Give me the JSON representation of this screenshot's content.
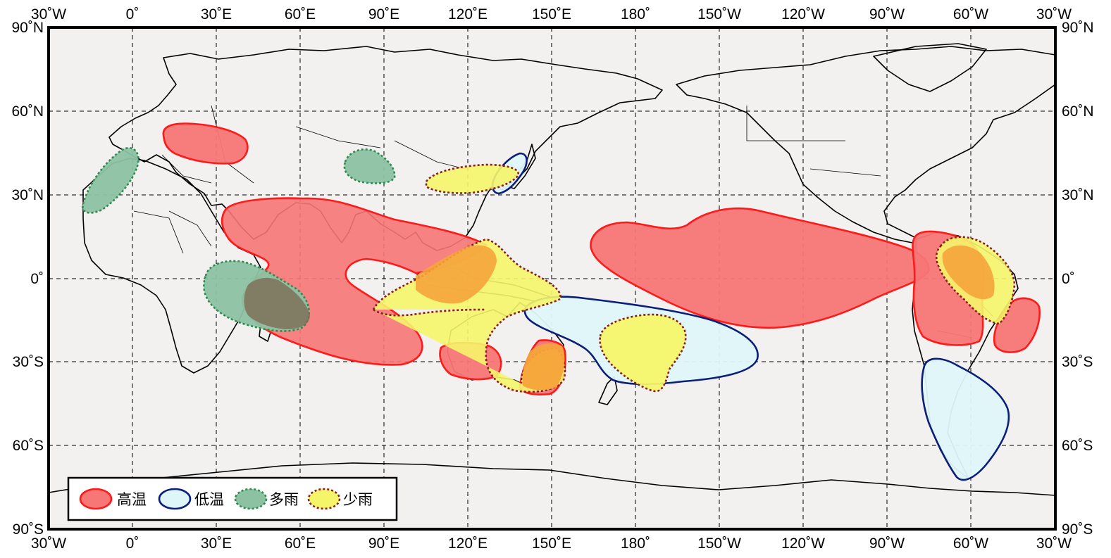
{
  "map": {
    "lon_labels": [
      "30˚W",
      "0˚",
      "30˚E",
      "60˚E",
      "90˚E",
      "120˚E",
      "150˚E",
      "180˚",
      "150˚W",
      "120˚W",
      "90˚W",
      "60˚W",
      "30˚W"
    ],
    "lat_labels": [
      "90˚N",
      "60˚N",
      "30˚N",
      "0˚",
      "30˚S",
      "60˚S",
      "90˚S"
    ],
    "colors": {
      "high_temp_fill": "#f77676",
      "high_temp_stroke": "#ff1a1a",
      "low_temp_fill": "#dff6f8",
      "low_temp_stroke": "#0a1f7a",
      "wet_fill": "#8cc2a2",
      "wet_stroke": "#2f8a4e",
      "dry_fill": "#f5f56a",
      "dry_stroke": "#8a1d1d",
      "ocean": "#f2f1f0"
    },
    "regions": [
      {
        "category": "high_temp",
        "area": "Europe"
      },
      {
        "category": "high_temp",
        "area": "Indian Ocean to Western Pacific"
      },
      {
        "category": "high_temp",
        "area": "Western Australia"
      },
      {
        "category": "high_temp",
        "area": "Eastern Australia"
      },
      {
        "category": "high_temp",
        "area": "Central to Eastern Pacific"
      },
      {
        "category": "high_temp",
        "area": "Northern South America"
      },
      {
        "category": "high_temp",
        "area": "Eastern Brazil coast"
      },
      {
        "category": "low_temp",
        "area": "Japan"
      },
      {
        "category": "low_temp",
        "area": "Southwest Pacific"
      },
      {
        "category": "low_temp",
        "area": "Southern South America"
      },
      {
        "category": "wet",
        "area": "Northwest Africa"
      },
      {
        "category": "wet",
        "area": "Central Asia"
      },
      {
        "category": "wet",
        "area": "East Africa"
      },
      {
        "category": "dry",
        "area": "East Asia"
      },
      {
        "category": "dry",
        "area": "Maritime Continent to Australia"
      },
      {
        "category": "dry",
        "area": "Southwest Pacific"
      },
      {
        "category": "dry",
        "area": "Northern South America"
      }
    ]
  },
  "legend": {
    "items": [
      {
        "key": "high_temp",
        "label": "高温"
      },
      {
        "key": "low_temp",
        "label": "低温"
      },
      {
        "key": "wet",
        "label": "多雨"
      },
      {
        "key": "dry",
        "label": "少雨"
      }
    ]
  }
}
